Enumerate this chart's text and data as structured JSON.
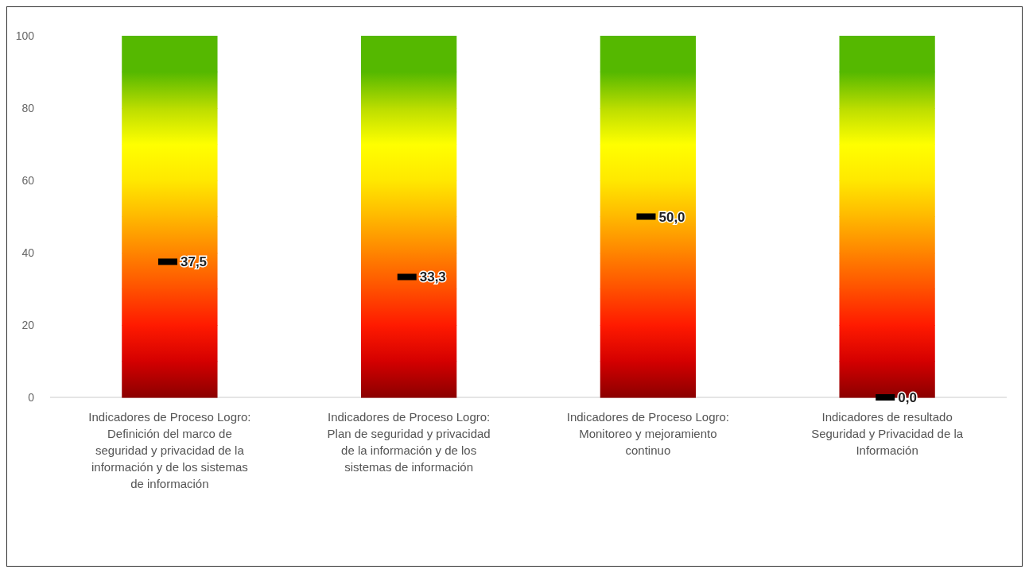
{
  "chart_data": {
    "type": "bar",
    "stacked": true,
    "grid": false,
    "ylim": [
      0,
      100
    ],
    "yticks": [
      0,
      20,
      40,
      60,
      80,
      100
    ],
    "categories": [
      "Indicadores de Proceso Logro: Definición del marco de seguridad y privacidad de la información y de los sistemas de información",
      "Indicadores de Proceso Logro: Plan de seguridad y privacidad de la información y de los sistemas de información",
      "Indicadores de Proceso Logro: Monitoreo y mejoramiento continuo",
      "Indicadores de resultado Seguridad y Privacidad de la Información"
    ],
    "series": [
      {
        "color": "#8b0000",
        "values": [
          10,
          10,
          10,
          10
        ]
      },
      {
        "color": "#d40000",
        "values": [
          10,
          10,
          10,
          10
        ]
      },
      {
        "color": "#ff1a00",
        "values": [
          10,
          10,
          10,
          10
        ]
      },
      {
        "color": "#ff5000",
        "values": [
          10,
          10,
          10,
          10
        ]
      },
      {
        "color": "#ff8400",
        "values": [
          10,
          10,
          10,
          10
        ]
      },
      {
        "color": "#ffb800",
        "values": [
          10,
          10,
          10,
          10
        ]
      },
      {
        "color": "#ffe800",
        "values": [
          10,
          10,
          10,
          10
        ]
      },
      {
        "color": "#ffff00",
        "values": [
          10,
          10,
          10,
          10
        ]
      },
      {
        "color": "#bbdd00",
        "values": [
          10,
          10,
          10,
          10
        ]
      },
      {
        "color": "#55b800",
        "values": [
          10,
          10,
          10,
          10
        ]
      },
      {
        "type": "scatter",
        "color": "#000000",
        "values": [
          37.5,
          33.3,
          50,
          0
        ],
        "value_labels": [
          "37,5",
          "33,3",
          "50,0",
          "0,0"
        ]
      }
    ]
  }
}
